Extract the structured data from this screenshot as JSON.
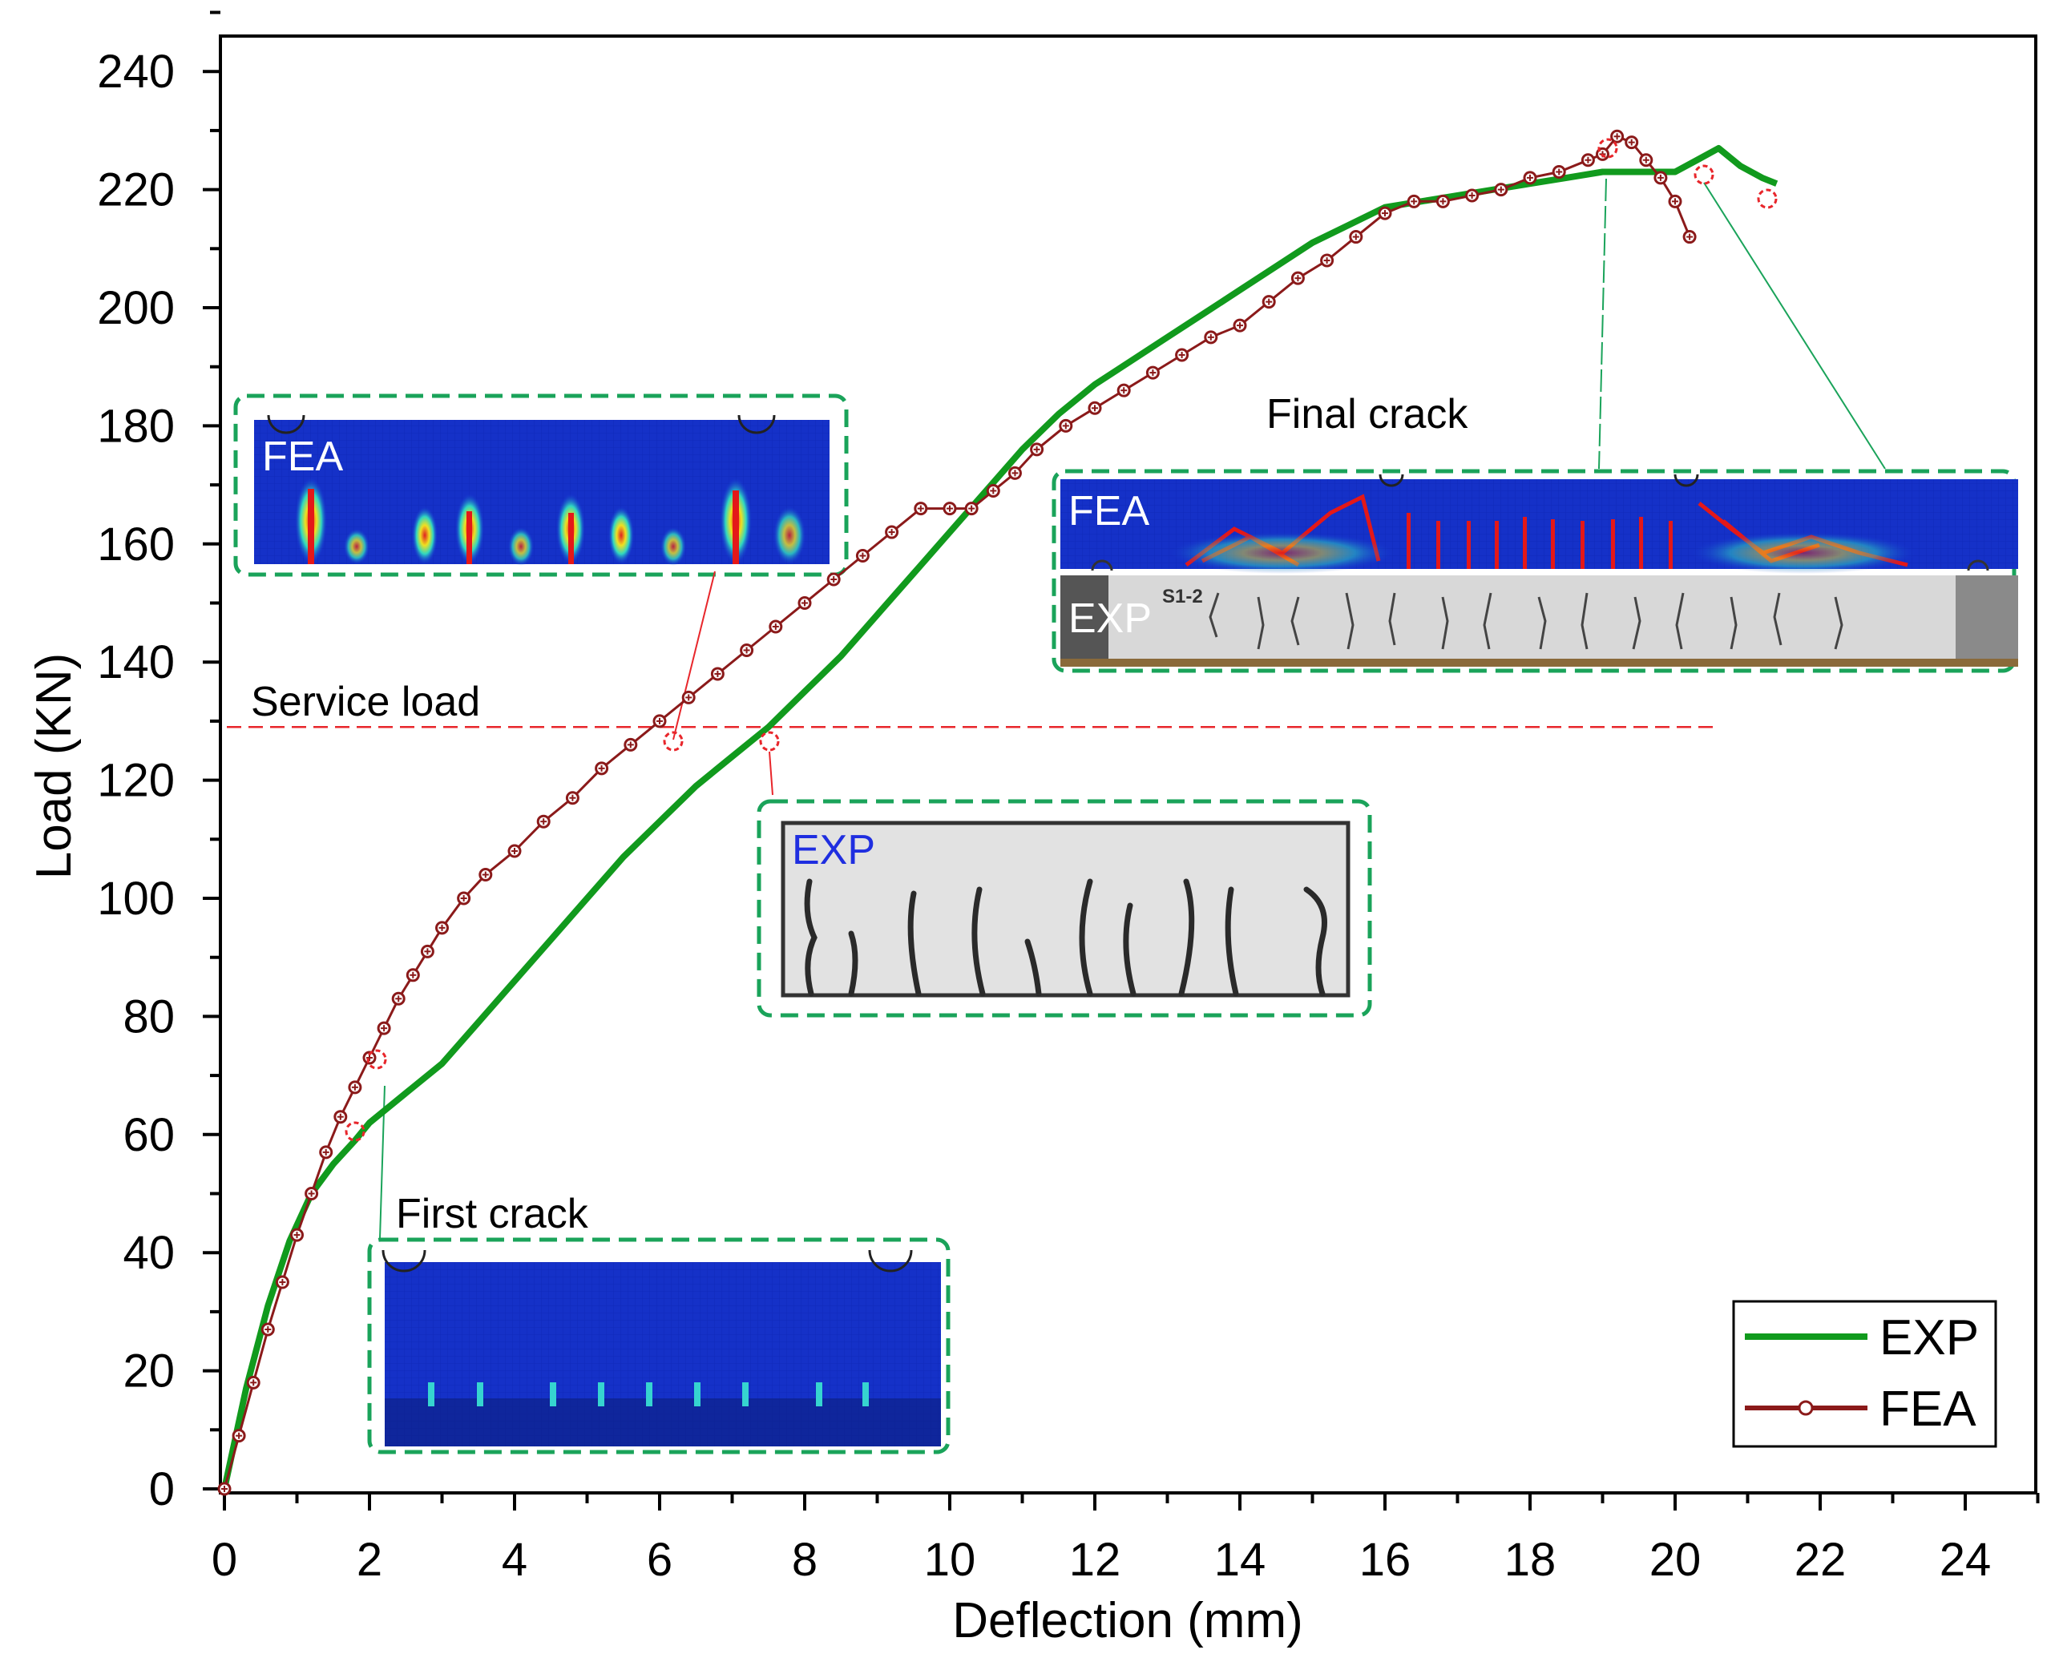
{
  "chart_data": {
    "type": "line",
    "xlabel": "Deflection (mm)",
    "ylabel": "Load (KN)",
    "xlim": [
      0,
      25
    ],
    "ylim": [
      0,
      250
    ],
    "xticks": [
      0,
      2,
      4,
      6,
      8,
      10,
      12,
      14,
      16,
      18,
      20,
      22,
      24
    ],
    "yticks": [
      0,
      20,
      40,
      60,
      80,
      100,
      120,
      140,
      160,
      180,
      200,
      220,
      240
    ],
    "grid": false,
    "legend_position": "bottom-right",
    "series": [
      {
        "name": "EXP",
        "color": "#119a1d",
        "marker": "none",
        "x": [
          0,
          0.3,
          0.6,
          0.9,
          1.2,
          1.5,
          1.8,
          2.0,
          2.3,
          2.6,
          3.0,
          3.5,
          4.0,
          4.5,
          5.0,
          5.5,
          6.0,
          6.5,
          7.0,
          7.5,
          8.0,
          8.5,
          9.0,
          9.5,
          10.0,
          10.5,
          11.0,
          11.5,
          12.0,
          12.5,
          13.0,
          13.5,
          14.0,
          14.5,
          15.0,
          15.5,
          16.0,
          16.5,
          17.0,
          17.5,
          18.0,
          18.5,
          19.0,
          19.5,
          20.0,
          20.3,
          20.6,
          20.9,
          21.2,
          21.4
        ],
        "y": [
          0,
          17,
          31,
          42,
          50,
          55,
          59,
          62,
          65,
          68,
          72,
          79,
          86,
          93,
          100,
          107,
          113,
          119,
          124,
          129,
          135,
          141,
          148,
          155,
          162,
          169,
          176,
          182,
          187,
          191,
          195,
          199,
          203,
          207,
          211,
          214,
          217,
          218,
          219,
          220,
          221,
          222,
          223,
          223,
          223,
          225,
          227,
          224,
          222,
          221
        ]
      },
      {
        "name": "FEA",
        "color": "#8b1a1a",
        "marker": "circle-plus",
        "x": [
          0,
          0.2,
          0.4,
          0.6,
          0.8,
          1.0,
          1.2,
          1.4,
          1.6,
          1.8,
          2.0,
          2.2,
          2.4,
          2.6,
          2.8,
          3.0,
          3.3,
          3.6,
          4.0,
          4.4,
          4.8,
          5.2,
          5.6,
          6.0,
          6.4,
          6.8,
          7.2,
          7.6,
          8.0,
          8.4,
          8.8,
          9.2,
          9.6,
          10.0,
          10.3,
          10.6,
          10.9,
          11.2,
          11.6,
          12.0,
          12.4,
          12.8,
          13.2,
          13.6,
          14.0,
          14.4,
          14.8,
          15.2,
          15.6,
          16.0,
          16.4,
          16.8,
          17.2,
          17.6,
          18.0,
          18.4,
          18.8,
          19.0,
          19.2,
          19.4,
          19.6,
          19.8,
          20.0,
          20.2
        ],
        "y": [
          0,
          9,
          18,
          27,
          35,
          43,
          50,
          57,
          63,
          68,
          73,
          78,
          83,
          87,
          91,
          95,
          100,
          104,
          108,
          113,
          117,
          122,
          126,
          130,
          134,
          138,
          142,
          146,
          150,
          154,
          158,
          162,
          166,
          166,
          166,
          169,
          172,
          176,
          180,
          183,
          186,
          189,
          192,
          195,
          197,
          201,
          205,
          208,
          212,
          216,
          218,
          218,
          219,
          220,
          222,
          223,
          225,
          226,
          229,
          228,
          225,
          222,
          218,
          212
        ]
      }
    ],
    "annotations": {
      "service_load": {
        "text": "Service load",
        "y": 129
      },
      "first_crack": "First crack",
      "final_crack": "Final crack"
    },
    "insets": {
      "fea_service": "FEA",
      "exp_service": "EXP",
      "fea_final": "FEA",
      "exp_final": "EXP",
      "specimen_tag": "S1-2"
    }
  }
}
